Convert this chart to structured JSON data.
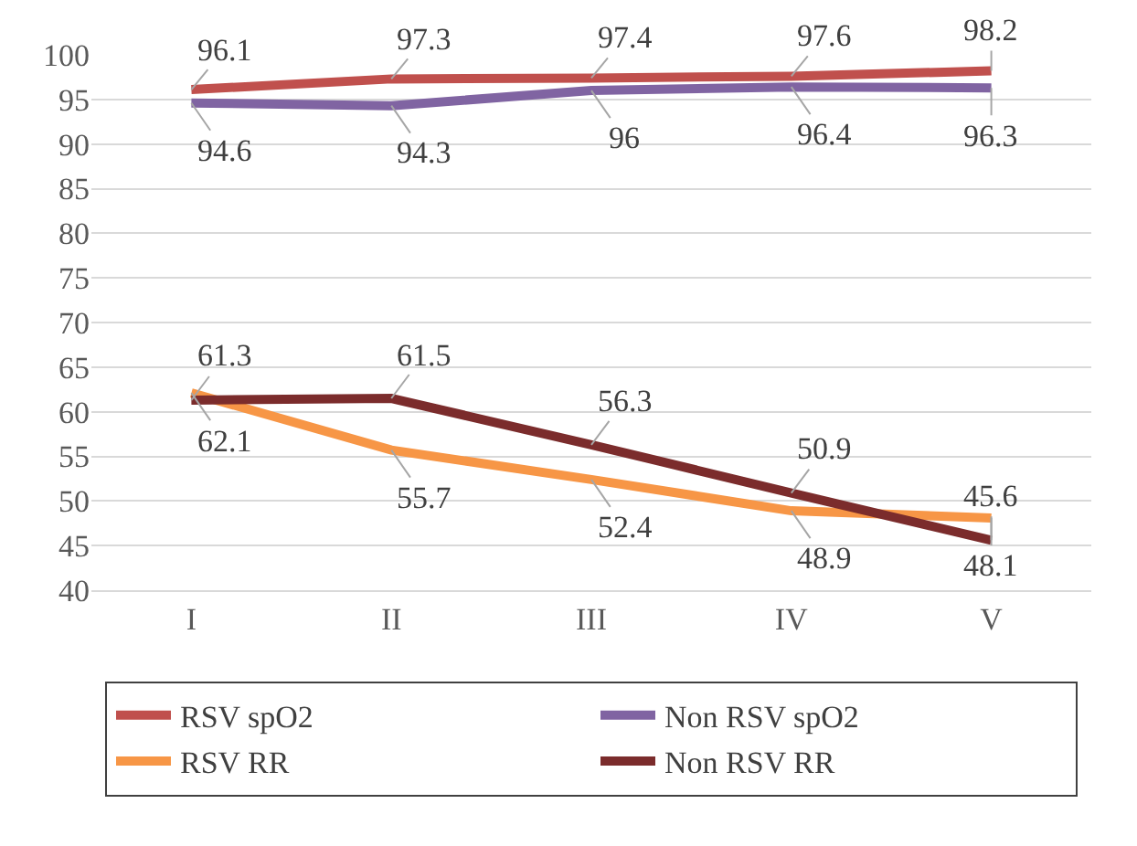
{
  "chart_data": {
    "type": "line",
    "categories": [
      "I",
      "II",
      "III",
      "IV",
      "V"
    ],
    "series": [
      {
        "name": "RSV spO2",
        "color": "#c0504d",
        "values": [
          96.1,
          97.3,
          97.4,
          97.6,
          98.2
        ]
      },
      {
        "name": "Non RSV spO2",
        "color": "#8064a2",
        "values": [
          94.6,
          94.3,
          96,
          96.4,
          96.3
        ]
      },
      {
        "name": "RSV RR",
        "color": "#f79646",
        "values": [
          62.1,
          55.7,
          52.4,
          48.9,
          48.1
        ]
      },
      {
        "name": "Non RSV RR",
        "color": "#7b2c2c",
        "values": [
          61.3,
          61.5,
          56.3,
          50.9,
          45.6
        ]
      }
    ],
    "ylim": [
      40,
      100
    ],
    "yticks": [
      40,
      45,
      50,
      55,
      60,
      65,
      70,
      75,
      80,
      85,
      90,
      95,
      100
    ],
    "grid": "y",
    "legend": "bottom",
    "data_labels": true,
    "marker": "none",
    "line_style": "solid"
  }
}
